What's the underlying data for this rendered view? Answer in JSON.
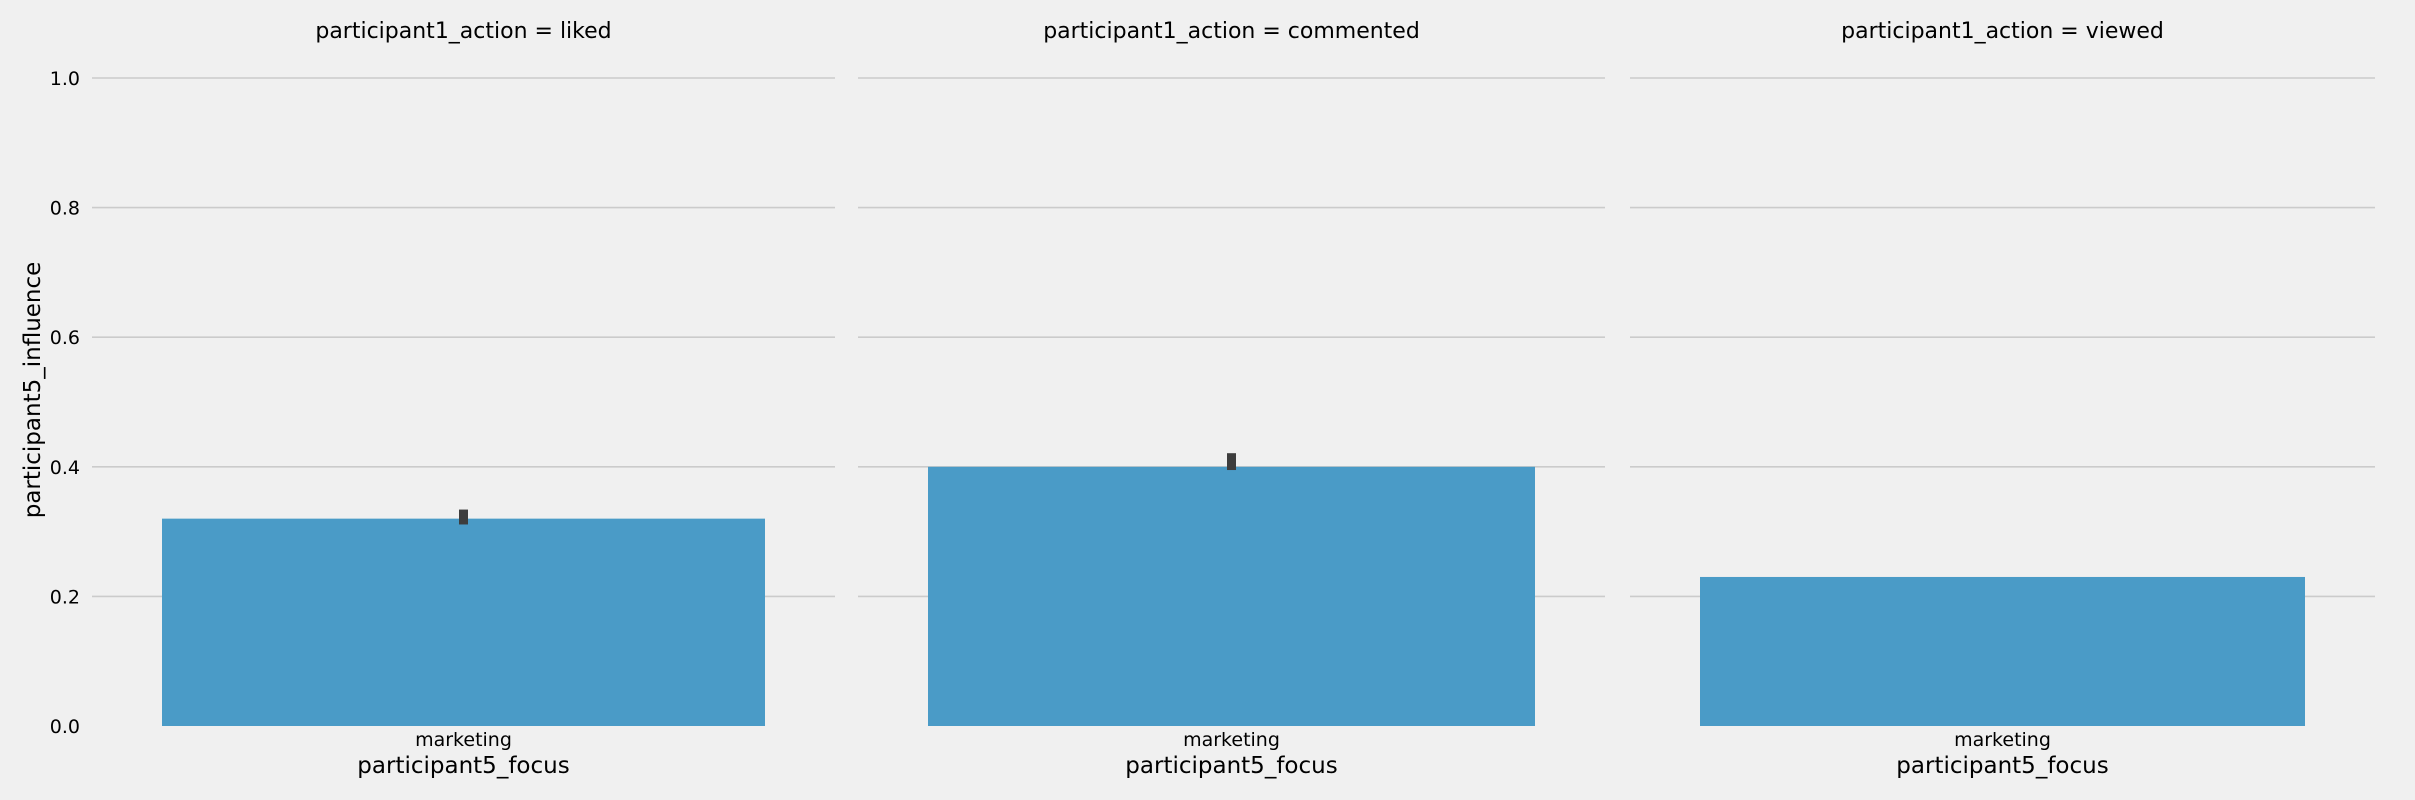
{
  "chart_data": {
    "type": "bar",
    "ylabel": "participant5_influence",
    "ylim": [
      0,
      1.0
    ],
    "yticks": [
      "0.0",
      "0.2",
      "0.4",
      "0.6",
      "0.8",
      "1.0"
    ],
    "grid": true,
    "panels": [
      {
        "title": "participant1_action = liked",
        "xlabel": "participant5_focus",
        "categories": [
          "marketing"
        ],
        "values": [
          0.32
        ],
        "error": [
          [
            0.311,
            0.334
          ]
        ]
      },
      {
        "title": "participant1_action = commented",
        "xlabel": "participant5_focus",
        "categories": [
          "marketing"
        ],
        "values": [
          0.4
        ],
        "error": [
          [
            0.395,
            0.421
          ]
        ]
      },
      {
        "title": "participant1_action = viewed",
        "xlabel": "participant5_focus",
        "categories": [
          "marketing"
        ],
        "values": [
          0.23
        ],
        "error": [
          null
        ]
      }
    ],
    "bar_color": "#4a9bc7",
    "errorbar_color": "#3d3d3d",
    "grid_color": "#cbcbcb",
    "background": "#f0f0f0"
  }
}
